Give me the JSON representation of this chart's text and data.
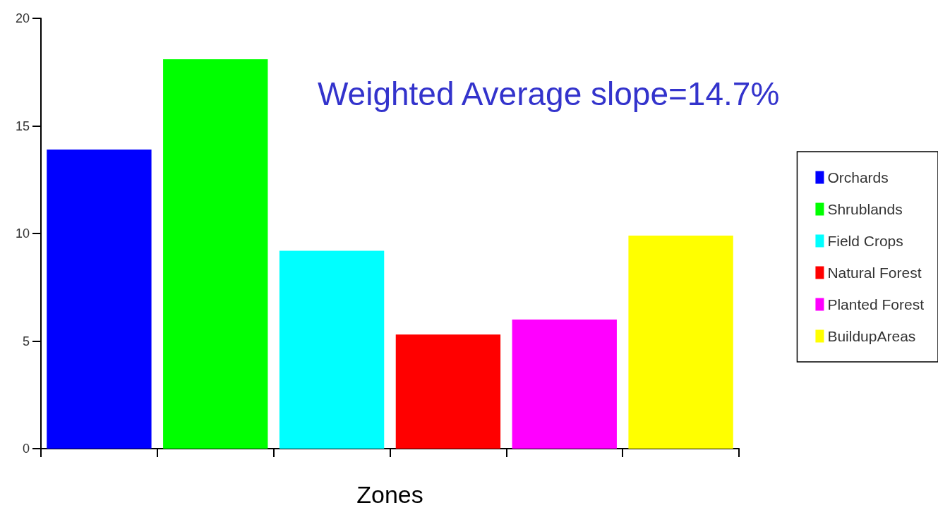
{
  "chart_data": {
    "type": "bar",
    "xlabel": "Zones",
    "categories": [
      null,
      null,
      null,
      null,
      null,
      null
    ],
    "series": [
      {
        "name": "Orchards",
        "color": "#0000ff",
        "values": [
          13.9,
          null,
          null,
          null,
          null,
          null
        ]
      },
      {
        "name": "Shrublands",
        "color": "#00ff00",
        "values": [
          null,
          18.1,
          null,
          null,
          null,
          null
        ]
      },
      {
        "name": "Field Crops",
        "color": "#00ffff",
        "values": [
          null,
          null,
          9.2,
          null,
          null,
          null
        ]
      },
      {
        "name": "Natural Forest",
        "color": "#ff0000",
        "values": [
          null,
          null,
          null,
          5.3,
          null,
          null
        ]
      },
      {
        "name": "Planted Forest",
        "color": "#ff00ff",
        "values": [
          null,
          null,
          null,
          null,
          6.0,
          null
        ]
      },
      {
        "name": "BuildupAreas",
        "color": "#ffff00",
        "values": [
          null,
          null,
          null,
          null,
          null,
          9.9
        ]
      }
    ],
    "ylim": [
      0,
      20
    ],
    "yticks": [
      0,
      5,
      10,
      15,
      20
    ],
    "grid": false,
    "legend": "right",
    "annotations": [
      "Weighted Average slope=14.7%"
    ]
  }
}
